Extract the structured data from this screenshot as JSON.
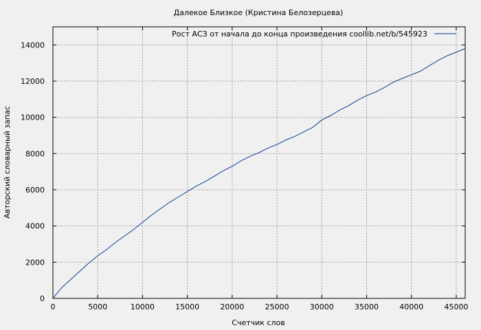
{
  "chart_data": {
    "type": "line",
    "title": "Далекое Близкое (Кристина Белозерцева)",
    "xlabel": "Счетчик слов",
    "ylabel": "Авторский словарный запас",
    "xlim": [
      0,
      46000
    ],
    "ylim": [
      0,
      15000
    ],
    "x_ticks": [
      0,
      5000,
      10000,
      15000,
      20000,
      25000,
      30000,
      35000,
      40000,
      45000
    ],
    "y_ticks": [
      0,
      2000,
      4000,
      6000,
      8000,
      10000,
      12000,
      14000
    ],
    "grid": true,
    "legend_position": "top-right",
    "series": [
      {
        "name": "Рост АСЗ от начала до конца произведения  coollib.net/b/545923",
        "color": "#0a3d91",
        "x": [
          0,
          500,
          1000,
          2000,
          3000,
          4000,
          5000,
          6000,
          7000,
          8000,
          9000,
          10000,
          11000,
          12000,
          13000,
          14000,
          15000,
          16000,
          17000,
          18000,
          19000,
          20000,
          21000,
          22000,
          23000,
          24000,
          25000,
          26000,
          27000,
          28000,
          29000,
          29500,
          30000,
          31000,
          32000,
          33000,
          34000,
          35000,
          36000,
          37000,
          38000,
          39000,
          40000,
          41000,
          42000,
          43000,
          44000,
          45000,
          46000
        ],
        "y": [
          0,
          300,
          600,
          1050,
          1500,
          1950,
          2350,
          2700,
          3100,
          3450,
          3800,
          4200,
          4600,
          4950,
          5300,
          5600,
          5900,
          6200,
          6450,
          6750,
          7050,
          7300,
          7600,
          7850,
          8050,
          8300,
          8500,
          8750,
          8950,
          9200,
          9450,
          9650,
          9850,
          10100,
          10400,
          10650,
          10950,
          11200,
          11400,
          11650,
          11950,
          12150,
          12350,
          12550,
          12850,
          13150,
          13400,
          13600,
          13800
        ]
      }
    ]
  }
}
